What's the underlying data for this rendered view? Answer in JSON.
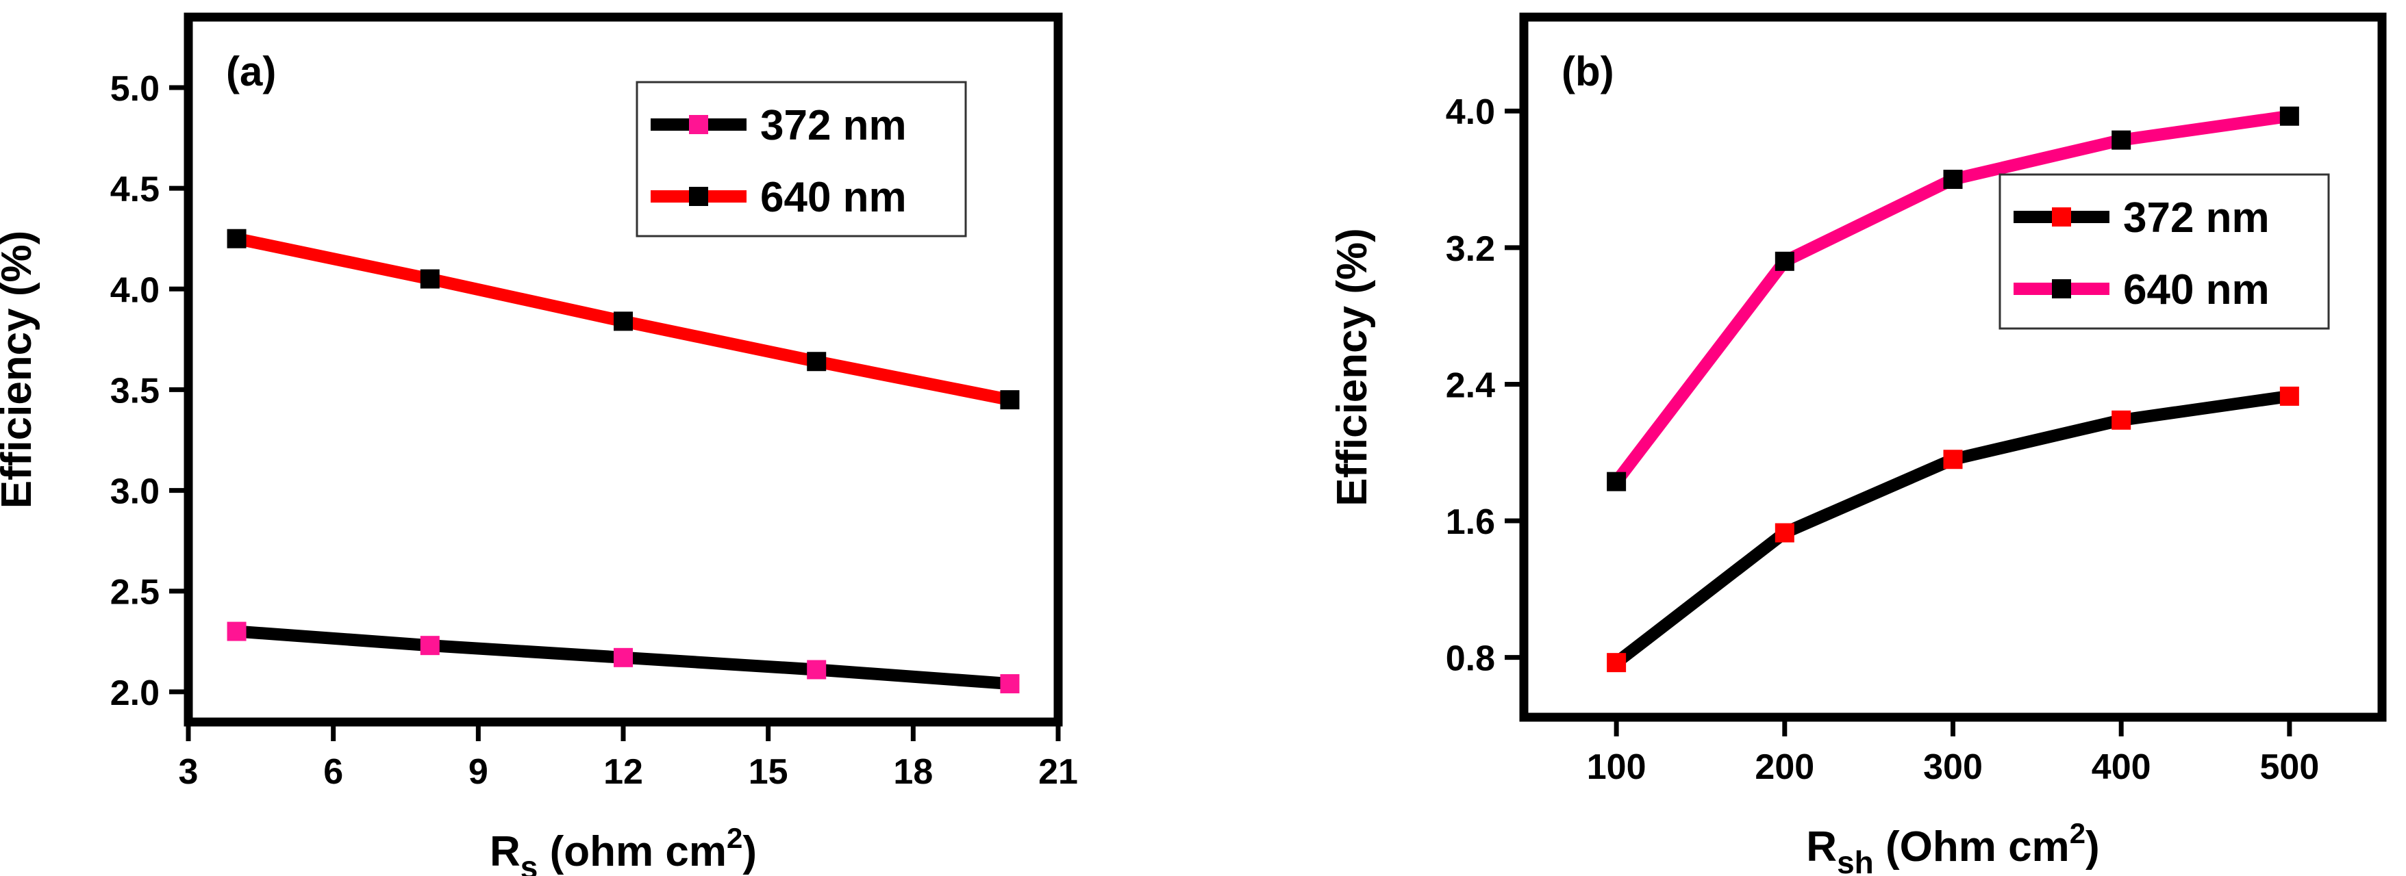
{
  "chart_data": [
    {
      "type": "line",
      "panel_label": "(a)",
      "ylabel": "Efficiency (%)",
      "xlabel": {
        "main": "R",
        "sub": "s",
        "rest": " (ohm cm",
        "sup": "2",
        "close": ")"
      },
      "x": [
        4,
        8,
        12,
        16,
        20
      ],
      "xlim": [
        3,
        21
      ],
      "ylim": [
        1.85,
        5.35
      ],
      "xticks": [
        3,
        6,
        9,
        12,
        15,
        18,
        21
      ],
      "yticks": [
        2.0,
        2.5,
        3.0,
        3.5,
        4.0,
        4.5,
        5.0
      ],
      "ytick_labels": [
        "2.0",
        "2.5",
        "3.0",
        "3.5",
        "4.0",
        "4.5",
        "5.0"
      ],
      "legend_position": "top-right",
      "series": [
        {
          "name": "372 nm",
          "line_color": "#000000",
          "marker_color": "#ff1493",
          "values": [
            2.3,
            2.23,
            2.17,
            2.11,
            2.04
          ]
        },
        {
          "name": "640 nm",
          "line_color": "#ff0000",
          "marker_color": "#000000",
          "values": [
            4.25,
            4.05,
            3.84,
            3.64,
            3.45
          ]
        }
      ]
    },
    {
      "type": "line",
      "panel_label": "(b)",
      "ylabel": "Efficiency (%)",
      "xlabel": {
        "main": "R",
        "sub": "sh",
        "rest": " (Ohm cm",
        "sup": "2",
        "close": ")"
      },
      "x": [
        100,
        200,
        300,
        400,
        500
      ],
      "xlim": [
        45,
        555
      ],
      "ylim": [
        0.45,
        4.55
      ],
      "xticks": [
        100,
        200,
        300,
        400,
        500
      ],
      "yticks": [
        0.8,
        1.6,
        2.4,
        3.2,
        4.0
      ],
      "ytick_labels": [
        "0.8",
        "1.6",
        "2.4",
        "3.2",
        "4.0"
      ],
      "legend_position": "right",
      "series": [
        {
          "name": "372 nm",
          "line_color": "#000000",
          "marker_color": "#ff0000",
          "values": [
            0.77,
            1.53,
            1.96,
            2.19,
            2.33
          ]
        },
        {
          "name": "640 nm",
          "line_color": "#ff0080",
          "marker_color": "#000000",
          "values": [
            1.83,
            3.12,
            3.6,
            3.83,
            3.97
          ]
        }
      ]
    }
  ]
}
